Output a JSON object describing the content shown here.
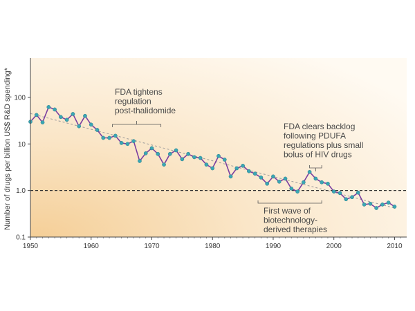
{
  "chart_data": {
    "type": "line",
    "ylabel": "Number of drugs per billion US$ R&D spending*",
    "xlim": [
      1950,
      2012
    ],
    "ylim": [
      0.1,
      700
    ],
    "y_scale": "log",
    "x_ticks": [
      1950,
      1960,
      1970,
      1980,
      1990,
      2000,
      2010
    ],
    "x_tick_labels": [
      "1950",
      "1960",
      "1970",
      "1980",
      "1990",
      "2000",
      "2010"
    ],
    "y_ticks": [
      0.1,
      1.0,
      10,
      100
    ],
    "y_tick_labels": [
      "0.1",
      "1.0",
      "10",
      "100"
    ],
    "reference_line": 1.0,
    "colors": {
      "line": "#7b3fa0",
      "marker": "#3aa6b4",
      "trend": "#9a9a9a",
      "reference": "#333333",
      "background_warm": "#f6d9ad"
    },
    "series": [
      {
        "x": [
          1950,
          1951,
          1952,
          1953,
          1954,
          1955,
          1956,
          1957,
          1958,
          1959,
          1960,
          1961,
          1962,
          1963,
          1964,
          1965,
          1966,
          1967,
          1968,
          1969,
          1970,
          1971,
          1972,
          1973,
          1974,
          1975,
          1976,
          1977,
          1978,
          1979,
          1980,
          1981,
          1982,
          1983,
          1984,
          1985,
          1986,
          1987,
          1988,
          1989,
          1990,
          1991,
          1992,
          1993,
          1994,
          1995,
          1996,
          1997,
          1998,
          1999,
          2000,
          2001,
          2002,
          2003,
          2004,
          2005,
          2006,
          2007,
          2008,
          2009,
          2010
        ],
        "y": [
          30,
          42,
          29,
          62,
          55,
          38,
          33,
          44,
          24,
          40,
          26,
          20,
          13.5,
          13.5,
          15,
          10.5,
          10,
          11.5,
          4.3,
          6.3,
          8.1,
          6.1,
          3.6,
          6.1,
          7.3,
          4.7,
          6.1,
          5.2,
          5,
          3.6,
          3,
          5.5,
          4.6,
          2,
          3,
          3.4,
          2.6,
          2.3,
          1.9,
          1.4,
          2,
          1.55,
          1.8,
          1.1,
          0.95,
          1.5,
          2.5,
          1.8,
          1.5,
          1.4,
          0.95,
          0.88,
          0.65,
          0.72,
          0.9,
          0.5,
          0.52,
          0.42,
          0.5,
          0.55,
          0.45
        ]
      }
    ],
    "trend": {
      "x": [
        1950,
        2010
      ],
      "y": [
        45,
        0.42
      ]
    },
    "annotations": [
      {
        "lines": [
          "FDA tightens",
          "regulation",
          "post-thalidomide"
        ],
        "bracket_x": [
          1963.5,
          1971.5
        ],
        "pointer": "up"
      },
      {
        "lines": [
          "FDA clears backlog",
          "following PDUFA",
          "regulations plus small",
          "bolus of HIV drugs"
        ],
        "bracket_x": [
          1996,
          1998
        ],
        "pointer": "down"
      },
      {
        "lines": [
          "First wave of",
          "biotechnology-",
          "derived therapies"
        ],
        "bracket_x": [
          1987.5,
          1998
        ],
        "pointer": "up"
      }
    ]
  }
}
